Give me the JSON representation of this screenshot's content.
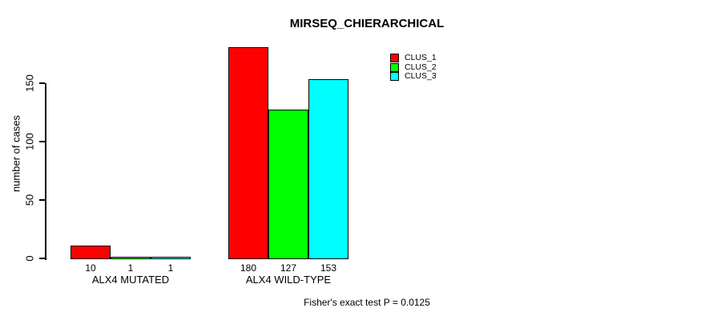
{
  "chart_data": {
    "type": "bar",
    "title": "MIRSEQ_CHIERARCHICAL",
    "ylabel": "number of cases",
    "xlabel": "",
    "annotation": "Fisher's exact test P = 0.0125",
    "yticks": [
      0,
      50,
      100,
      150
    ],
    "ylim": [
      0,
      180
    ],
    "grid": false,
    "legend_position": "inside-top-right",
    "background_color": "#FFFFFF",
    "axis_color": "#000000",
    "text_color": "#000000",
    "series": [
      {
        "name": "CLUS_1",
        "color": "#FF0000"
      },
      {
        "name": "CLUS_2",
        "color": "#00FF00"
      },
      {
        "name": "CLUS_3",
        "color": "#00FFFF"
      }
    ],
    "categories": [
      "ALX4 MUTATED",
      "ALX4 WILD-TYPE"
    ],
    "groups": [
      {
        "label": "ALX4 MUTATED",
        "values": [
          10,
          1,
          1
        ]
      },
      {
        "label": "ALX4 WILD-TYPE",
        "values": [
          180,
          127,
          153
        ]
      }
    ]
  }
}
